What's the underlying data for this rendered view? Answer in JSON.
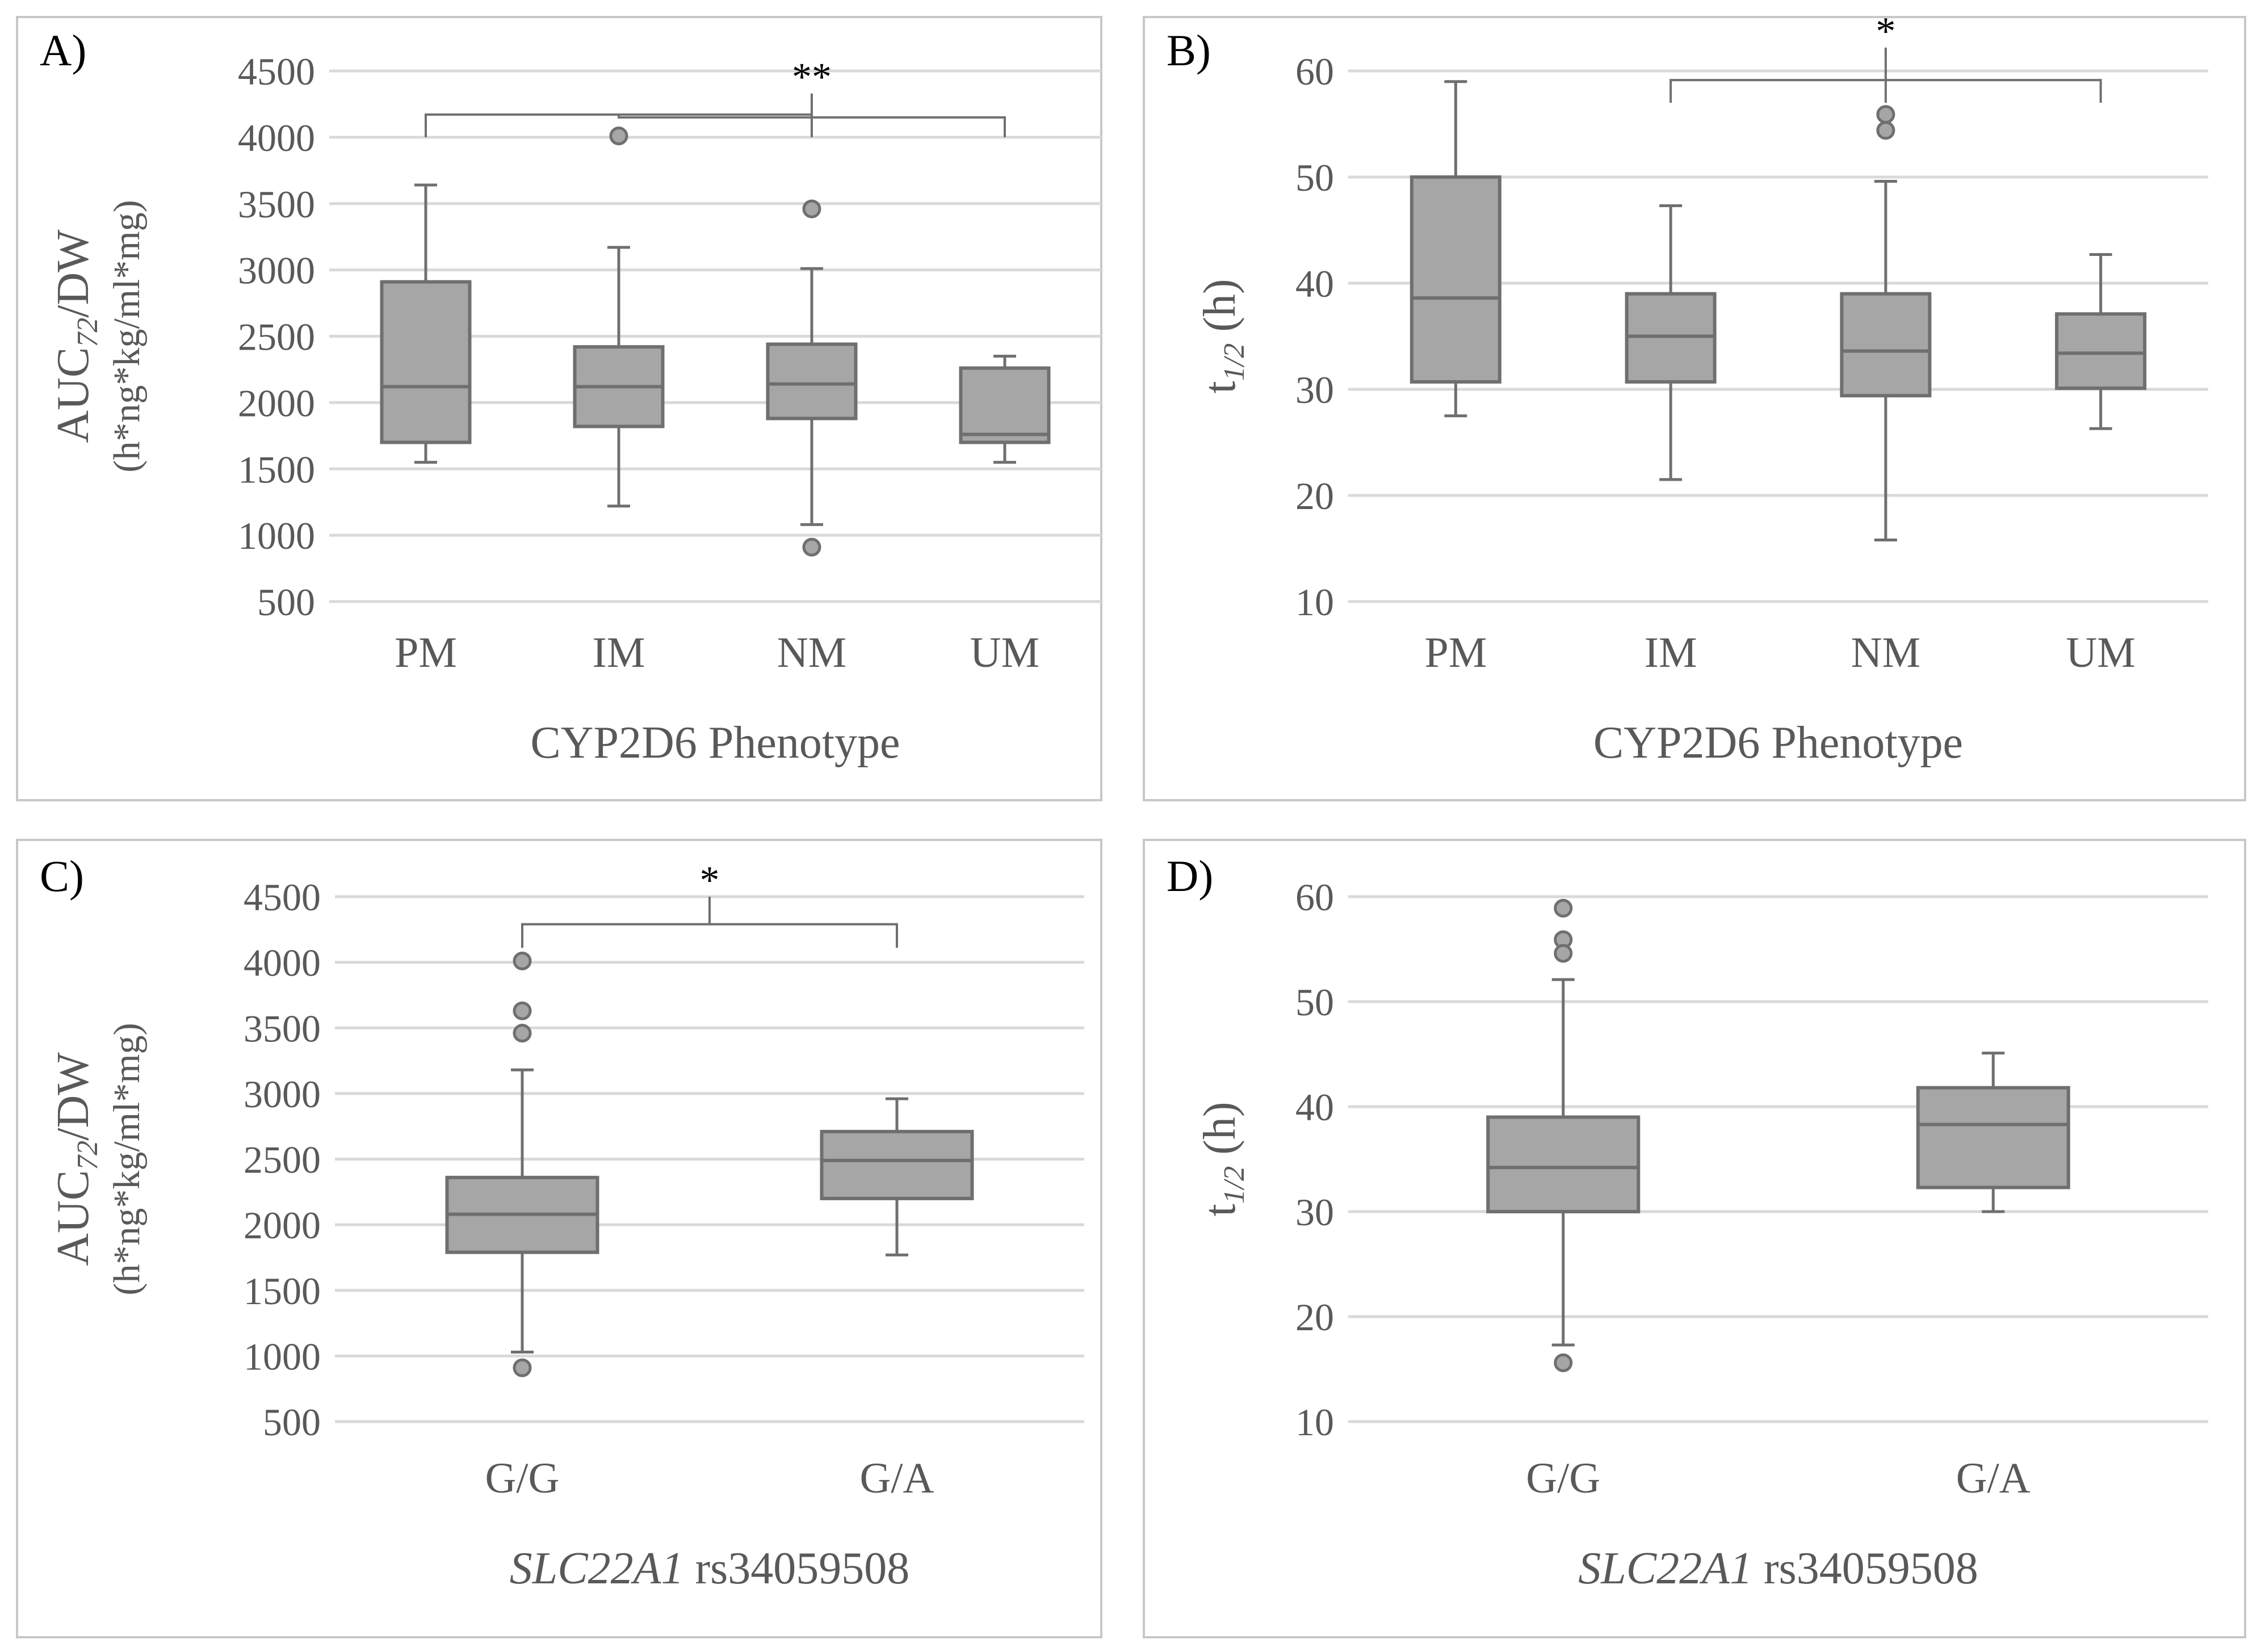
{
  "chart_data": [
    {
      "id": "A",
      "type": "box",
      "label": "A)",
      "categories": [
        "PM",
        "IM",
        "NM",
        "UM"
      ],
      "xlabel": "CYP2D6 Phenotype",
      "xlabel_italic_part": "",
      "ylabel_main": "AUC",
      "ylabel_sub": "72",
      "ylabel_tail": "/DW",
      "ylabel_line2": "(h*ng*kg/ml*mg)",
      "ylim": [
        500,
        4500
      ],
      "yticks": [
        "500",
        "1000",
        "1500",
        "2000",
        "2500",
        "3000",
        "3500",
        "4000",
        "4500"
      ],
      "boxes": [
        {
          "category": "PM",
          "min": 1550,
          "q1": 1700,
          "median": 2120,
          "q3": 2910,
          "max": 3640,
          "outliers": []
        },
        {
          "category": "IM",
          "min": 1220,
          "q1": 1820,
          "median": 2120,
          "q3": 2420,
          "max": 3170,
          "outliers": [
            4010
          ]
        },
        {
          "category": "NM",
          "min": 1080,
          "q1": 1880,
          "median": 2140,
          "q3": 2440,
          "max": 3010,
          "outliers": [
            3460,
            910
          ]
        },
        {
          "category": "UM",
          "min": 1550,
          "q1": 1700,
          "median": 1760,
          "q3": 2260,
          "max": 2350,
          "outliers": []
        }
      ],
      "significance": [
        {
          "label": "**",
          "outer": [
            1,
            3
          ],
          "inner_from": [
            0,
            2
          ],
          "bottom": 4000,
          "bar": 4150,
          "top": 4330
        }
      ]
    },
    {
      "id": "B",
      "type": "box",
      "label": "B)",
      "categories": [
        "PM",
        "IM",
        "NM",
        "UM"
      ],
      "xlabel": "CYP2D6 Phenotype",
      "xlabel_italic_part": "",
      "ylabel_main": "t",
      "ylabel_sub": "1/2",
      "ylabel_tail": " (h)",
      "ylabel_line2": "",
      "ylim": [
        10,
        60
      ],
      "yticks": [
        "10",
        "20",
        "30",
        "40",
        "50",
        "60"
      ],
      "boxes": [
        {
          "category": "PM",
          "min": 27.5,
          "q1": 30.7,
          "median": 38.6,
          "q3": 50.0,
          "max": 59.0,
          "outliers": []
        },
        {
          "category": "IM",
          "min": 21.5,
          "q1": 30.7,
          "median": 35.0,
          "q3": 39.0,
          "max": 47.3,
          "outliers": []
        },
        {
          "category": "NM",
          "min": 15.8,
          "q1": 29.4,
          "median": 33.6,
          "q3": 39.0,
          "max": 49.6,
          "outliers": [
            55.9,
            54.4
          ]
        },
        {
          "category": "UM",
          "min": 26.3,
          "q1": 30.1,
          "median": 33.4,
          "q3": 37.1,
          "max": 42.7,
          "outliers": []
        }
      ],
      "significance": [
        {
          "label": "*",
          "outer": [
            0,
            2
          ],
          "inner_from": [
            1,
            3
          ],
          "bottom": 57.0,
          "bar": 60.2,
          "top": 62.2
        }
      ]
    },
    {
      "id": "C",
      "type": "box",
      "label": "C)",
      "categories": [
        "G/G",
        "G/A"
      ],
      "xlabel": " rs34059508",
      "xlabel_italic_part": "SLC22A1",
      "ylabel_main": "AUC",
      "ylabel_sub": "72",
      "ylabel_tail": "/DW",
      "ylabel_line2": "(h*ng*kg/ml*mg)",
      "ylim": [
        500,
        4500
      ],
      "yticks": [
        "500",
        "1000",
        "1500",
        "2000",
        "2500",
        "3000",
        "3500",
        "4000",
        "4500"
      ],
      "boxes": [
        {
          "category": "G/G",
          "min": 1030,
          "q1": 1790,
          "median": 2080,
          "q3": 2360,
          "max": 3180,
          "outliers": [
            4010,
            3630,
            3460,
            910
          ]
        },
        {
          "category": "G/A",
          "min": 1770,
          "q1": 2200,
          "median": 2490,
          "q3": 2710,
          "max": 2960,
          "outliers": []
        }
      ],
      "significance": [
        {
          "label": "*",
          "pair": [
            0,
            1
          ],
          "bottom": 4110,
          "bar": 4290,
          "top": 4500
        }
      ]
    },
    {
      "id": "D",
      "type": "box",
      "label": "D)",
      "categories": [
        "G/G",
        "G/A"
      ],
      "xlabel": " rs34059508",
      "xlabel_italic_part": "SLC22A1",
      "ylabel_main": "t",
      "ylabel_sub": "1/2",
      "ylabel_tail": " (h)",
      "ylabel_line2": "",
      "ylim": [
        10,
        60
      ],
      "yticks": [
        "10",
        "20",
        "30",
        "40",
        "50",
        "60"
      ],
      "boxes": [
        {
          "category": "G/G",
          "min": 17.3,
          "q1": 30.0,
          "median": 34.2,
          "q3": 39.0,
          "max": 52.1,
          "outliers": [
            58.9,
            55.9,
            54.6,
            15.6
          ]
        },
        {
          "category": "G/A",
          "min": 30.0,
          "q1": 32.3,
          "median": 38.3,
          "q3": 41.8,
          "max": 45.1,
          "outliers": []
        }
      ],
      "significance": []
    }
  ]
}
